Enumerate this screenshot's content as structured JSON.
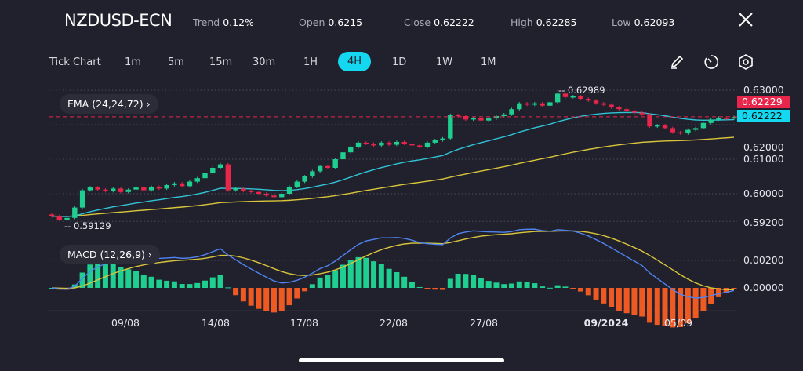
{
  "header": {
    "symbol": "NZDUSD-ECN",
    "trend_label": "Trend",
    "trend_value": "0.12%",
    "open_label": "Open",
    "open_value": "0.6215",
    "close_label": "Close",
    "close_value": "0.62222",
    "high_label": "High",
    "high_value": "0.62285",
    "low_label": "Low",
    "low_value": "0.62093",
    "close_icon": "close-x-icon"
  },
  "timeframes": [
    "Tick Chart",
    "1m",
    "5m",
    "15m",
    "30m",
    "1H",
    "4H",
    "1D",
    "1W",
    "1M"
  ],
  "active_timeframe": "4H",
  "tools": [
    "pencil-icon",
    "timer-icon",
    "hexagon-settings-icon"
  ],
  "colors": {
    "background": "#21212d",
    "accent": "#13d8ef",
    "up": "#1fcf8f",
    "down": "#e8254a",
    "ema_fast": "#2fc4d6",
    "ema_slow": "#d9c53b",
    "macd": "#4f83f0",
    "signal": "#d9c53b",
    "hist_down": "#ef5a22"
  },
  "indicators": {
    "ema_label": "EMA (24,24,72)",
    "macd_label": "MACD (12,26,9)"
  },
  "chart_data": {
    "type": "candlestick",
    "price_axis": [
      "0.63000",
      "0.62000",
      "0.61000",
      "0.60000",
      "0.59200"
    ],
    "price_range": [
      0.5905,
      0.6315
    ],
    "macd_axis": [
      "0.00200",
      "0.00000"
    ],
    "x_labels": [
      "09/08",
      "14/08",
      "17/08",
      "22/08",
      "27/08",
      "09/2024",
      "05/09"
    ],
    "bold_x_label": "09/2024",
    "high_marker": "0.62989",
    "low_marker": "0.59129",
    "bid_tag": "0.62229",
    "ask_tag": "0.62222",
    "closes": [
      0.5935,
      0.5925,
      0.593,
      0.596,
      0.601,
      0.6018,
      0.6012,
      0.6008,
      0.6015,
      0.6005,
      0.6012,
      0.6018,
      0.601,
      0.602,
      0.6015,
      0.6025,
      0.603,
      0.6022,
      0.6035,
      0.6045,
      0.606,
      0.6075,
      0.6085,
      0.601,
      0.6015,
      0.6008,
      0.6005,
      0.6,
      0.5995,
      0.599,
      0.6,
      0.602,
      0.6035,
      0.605,
      0.6065,
      0.608,
      0.6075,
      0.61,
      0.612,
      0.6135,
      0.6148,
      0.6145,
      0.614,
      0.6148,
      0.6142,
      0.615,
      0.6145,
      0.614,
      0.6135,
      0.6148,
      0.6155,
      0.616,
      0.6228,
      0.6225,
      0.6215,
      0.622,
      0.6212,
      0.6218,
      0.6225,
      0.623,
      0.6245,
      0.6262,
      0.6258,
      0.6262,
      0.6255,
      0.6265,
      0.629,
      0.628,
      0.6282,
      0.6275,
      0.627,
      0.6262,
      0.6258,
      0.625,
      0.6245,
      0.624,
      0.6235,
      0.623,
      0.6195,
      0.6198,
      0.619,
      0.6178,
      0.6175,
      0.6185,
      0.619,
      0.6205,
      0.6215,
      0.622,
      0.6218,
      0.62222
    ],
    "ema_periods": [
      24,
      72
    ],
    "macd_params": [
      12,
      26,
      9
    ],
    "grid": true
  }
}
